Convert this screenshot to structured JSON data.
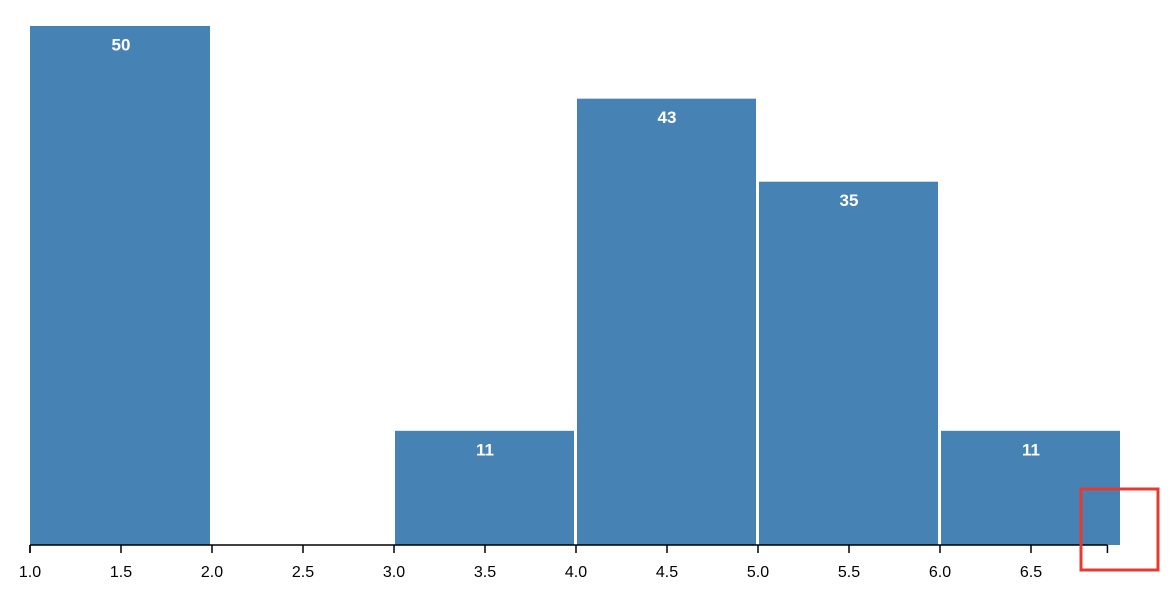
{
  "chart_data": {
    "type": "histogram",
    "bins": [
      1.0,
      2.0,
      3.0,
      4.0,
      5.0,
      6.0,
      7.0
    ],
    "values": [
      50,
      0,
      11,
      43,
      35,
      11
    ],
    "color": "#4682b4",
    "xlim": [
      1.0,
      6.92
    ],
    "xticks": [
      {
        "value": 1,
        "label": "1.0"
      },
      1.5,
      {
        "value": 2,
        "label": "2.0"
      },
      2.5,
      {
        "value": 3,
        "label": "3.0"
      },
      3.5,
      {
        "value": 4,
        "label": "4.0"
      },
      4.5,
      {
        "value": 5,
        "label": "5.0"
      },
      5.5,
      {
        "value": 6,
        "label": "6.0"
      },
      6.5
    ],
    "ylim": [
      0,
      50
    ]
  }
}
